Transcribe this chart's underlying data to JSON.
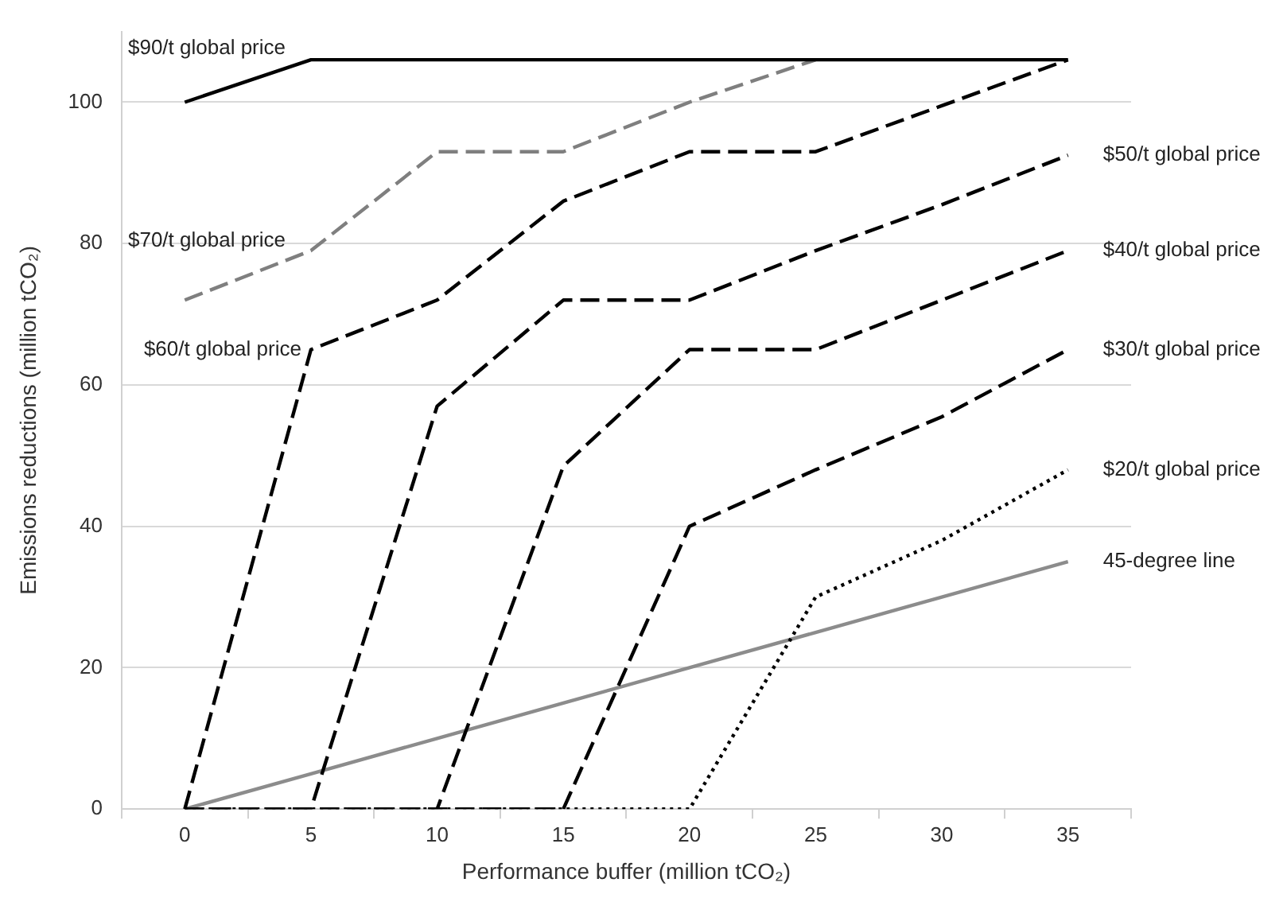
{
  "chart_data": {
    "type": "line",
    "xlabel": "Performance buffer (million tCO₂)",
    "ylabel": "Emissions reductions (million tCO₂)",
    "categories": [
      "0",
      "5",
      "10",
      "15",
      "20",
      "25",
      "30",
      "35"
    ],
    "series": [
      {
        "name": "$90/t global price",
        "color": "#000000",
        "line_style": "solid",
        "values": [
          100,
          106,
          106,
          106,
          106,
          106,
          106,
          106
        ]
      },
      {
        "name": "$70/t global price",
        "color": "#7f7f7f",
        "line_style": "dashed",
        "values": [
          72,
          79,
          93,
          93,
          100,
          106,
          null,
          null
        ]
      },
      {
        "name": "$60/t global price",
        "color": "#000000",
        "line_style": "dashed",
        "values": [
          0,
          65,
          72,
          86,
          93,
          93,
          99.5,
          106
        ]
      },
      {
        "name": "$50/t global price",
        "color": "#000000",
        "line_style": "dashed",
        "values": [
          0,
          0,
          57,
          72,
          72,
          79,
          85.5,
          92.5
        ]
      },
      {
        "name": "$40/t global price",
        "color": "#000000",
        "line_style": "dashed",
        "values": [
          0,
          0,
          0,
          48.5,
          65,
          65,
          72,
          79
        ]
      },
      {
        "name": "$30/t global price",
        "color": "#000000",
        "line_style": "dashed",
        "values": [
          0,
          0,
          0,
          0,
          40,
          48,
          55.5,
          65
        ]
      },
      {
        "name": "$20/t global price",
        "color": "#000000",
        "line_style": "dotted",
        "values": [
          0,
          0,
          0,
          0,
          0,
          30,
          38,
          48
        ]
      },
      {
        "name": "45-degree line",
        "color": "#8c8c8c",
        "line_style": "solid",
        "values": [
          0,
          5,
          10,
          15,
          20,
          25,
          30,
          35
        ]
      }
    ],
    "ylim": [
      0,
      110
    ],
    "yticks": [
      0,
      20,
      40,
      60,
      80,
      100
    ],
    "grid": "y",
    "legend": false,
    "marker": "none"
  }
}
